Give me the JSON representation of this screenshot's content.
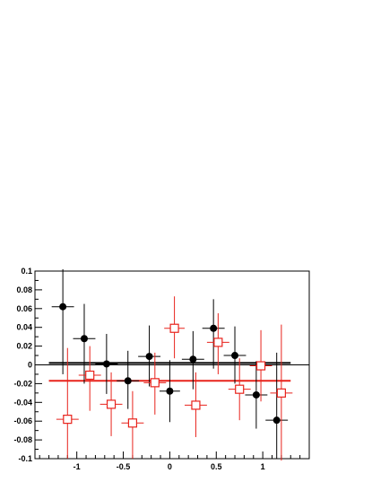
{
  "chart_data": {
    "type": "scatter",
    "title": "",
    "xlabel": "",
    "ylabel": "",
    "xlim": [
      -1.45,
      1.5
    ],
    "ylim": [
      -0.1,
      0.1
    ],
    "grid": false,
    "x_ticks": [
      -1,
      -0.5,
      0,
      0.5,
      1
    ],
    "x_tick_labels": [
      "-1",
      "-0.5",
      "0",
      "0.5",
      "1"
    ],
    "y_ticks": [
      0.1,
      0.08,
      0.06,
      0.04,
      0.02,
      0,
      -0.02,
      -0.04,
      -0.06,
      -0.08,
      -0.1
    ],
    "y_tick_labels": [
      "0.1",
      "0.08",
      "0.06",
      "0.04",
      "0.02",
      "0",
      "-0.02",
      "-0.04",
      "-0.06",
      "-0.08",
      "-0.1"
    ],
    "reference_line": {
      "y": 0,
      "color": "#000000"
    },
    "series": [
      {
        "marker": "filled-circle",
        "color": "#000000",
        "fit_line": {
          "y": 0.002,
          "x_range": [
            -1.3,
            1.3
          ]
        },
        "points": [
          {
            "x": -1.15,
            "y": 0.062,
            "xerr": 0.12,
            "yerr_low": 0.072,
            "yerr_high": 0.04
          },
          {
            "x": -0.92,
            "y": 0.028,
            "xerr": 0.12,
            "yerr_low": 0.048,
            "yerr_high": 0.037
          },
          {
            "x": -0.68,
            "y": 0.001,
            "xerr": 0.12,
            "yerr_low": 0.032,
            "yerr_high": 0.032
          },
          {
            "x": -0.45,
            "y": -0.017,
            "xerr": 0.12,
            "yerr_low": 0.03,
            "yerr_high": 0.032
          },
          {
            "x": -0.22,
            "y": 0.009,
            "xerr": 0.12,
            "yerr_low": 0.032,
            "yerr_high": 0.033
          },
          {
            "x": 0.0,
            "y": -0.028,
            "xerr": 0.11,
            "yerr_low": 0.033,
            "yerr_high": 0.033
          },
          {
            "x": 0.25,
            "y": 0.006,
            "xerr": 0.12,
            "yerr_low": 0.032,
            "yerr_high": 0.03
          },
          {
            "x": 0.47,
            "y": 0.039,
            "xerr": 0.12,
            "yerr_low": 0.043,
            "yerr_high": 0.031
          },
          {
            "x": 0.7,
            "y": 0.01,
            "xerr": 0.12,
            "yerr_low": 0.03,
            "yerr_high": 0.031
          },
          {
            "x": 0.93,
            "y": -0.032,
            "xerr": 0.12,
            "yerr_low": 0.036,
            "yerr_high": 0.036
          },
          {
            "x": 1.15,
            "y": -0.059,
            "xerr": 0.12,
            "yerr_low": 0.041,
            "yerr_high": 0.072
          }
        ]
      },
      {
        "marker": "open-square",
        "color": "#e8231c",
        "fit_line": {
          "y": -0.017,
          "x_range": [
            -1.3,
            1.3
          ]
        },
        "points": [
          {
            "x": -1.1,
            "y": -0.058,
            "xerr": 0.12,
            "yerr_low": 0.042,
            "yerr_high": 0.076
          },
          {
            "x": -0.86,
            "y": -0.011,
            "xerr": 0.12,
            "yerr_low": 0.038,
            "yerr_high": 0.031
          },
          {
            "x": -0.63,
            "y": -0.042,
            "xerr": 0.12,
            "yerr_low": 0.034,
            "yerr_high": 0.034
          },
          {
            "x": -0.4,
            "y": -0.062,
            "xerr": 0.12,
            "yerr_low": 0.038,
            "yerr_high": 0.034
          },
          {
            "x": -0.16,
            "y": -0.019,
            "xerr": 0.12,
            "yerr_low": 0.034,
            "yerr_high": 0.032
          },
          {
            "x": 0.05,
            "y": 0.039,
            "xerr": 0.11,
            "yerr_low": 0.032,
            "yerr_high": 0.034
          },
          {
            "x": 0.28,
            "y": -0.043,
            "xerr": 0.12,
            "yerr_low": 0.034,
            "yerr_high": 0.035
          },
          {
            "x": 0.52,
            "y": 0.024,
            "xerr": 0.12,
            "yerr_low": 0.034,
            "yerr_high": 0.031
          },
          {
            "x": 0.75,
            "y": -0.026,
            "xerr": 0.12,
            "yerr_low": 0.033,
            "yerr_high": 0.033
          },
          {
            "x": 0.98,
            "y": -0.001,
            "xerr": 0.12,
            "yerr_low": 0.038,
            "yerr_high": 0.038
          },
          {
            "x": 1.2,
            "y": -0.03,
            "xerr": 0.12,
            "yerr_low": 0.072,
            "yerr_high": 0.073
          }
        ]
      }
    ]
  }
}
